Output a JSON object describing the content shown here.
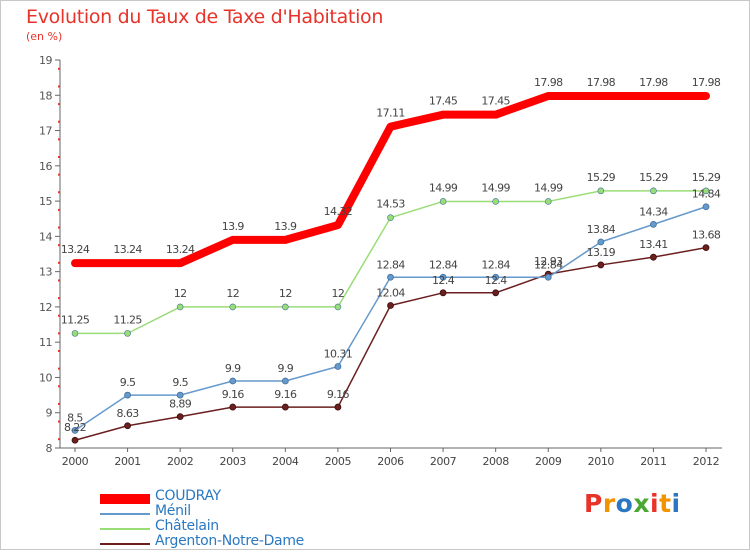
{
  "title": "Evolution du Taux de Taxe d'Habitation",
  "units": "(en %)",
  "logo": {
    "text": "Proxiti",
    "colors": [
      "#e8332a",
      "#f29400",
      "#2a78c2",
      "#4aa832",
      "#e8332a",
      "#f29400",
      "#2a78c2"
    ]
  },
  "chart_data": {
    "type": "line",
    "title": "Evolution du Taux de Taxe d'Habitation",
    "ylabel": "(en %)",
    "xlabel": "",
    "ylim": [
      8,
      19
    ],
    "yticks": [
      8,
      9,
      10,
      11,
      12,
      13,
      14,
      15,
      16,
      17,
      18,
      19
    ],
    "x": [
      "2000",
      "2001",
      "2002",
      "2003",
      "2004",
      "2005",
      "2006",
      "2007",
      "2008",
      "2009",
      "2010",
      "2011",
      "2012"
    ],
    "grid": false,
    "legend": "bottom-left",
    "series": [
      {
        "name": "COUDRAY",
        "color": "#ff0000",
        "values": [
          13.24,
          13.24,
          13.24,
          13.9,
          13.9,
          14.32,
          17.11,
          17.45,
          17.45,
          17.98,
          17.98,
          17.98,
          17.98
        ],
        "labels": [
          "13.24",
          "13.24",
          "13.24",
          "13.9",
          "13.9",
          "14.32",
          "17.11",
          "17.45",
          "17.45",
          "17.98",
          "17.98",
          "17.98",
          "17.98"
        ]
      },
      {
        "name": "Ménil",
        "color": "#6699cc",
        "values": [
          8.5,
          9.5,
          9.5,
          9.9,
          9.9,
          10.31,
          12.84,
          12.84,
          12.84,
          12.84,
          13.84,
          14.34,
          14.84
        ],
        "labels": [
          "8.5",
          "9.5",
          "9.5",
          "9.9",
          "9.9",
          "10.31",
          "12.84",
          "12.84",
          "12.84",
          "12.84",
          "13.84",
          "14.34",
          "14.84"
        ]
      },
      {
        "name": "Châtelain",
        "color": "#99dd77",
        "values": [
          11.25,
          11.25,
          12,
          12,
          12,
          12,
          14.53,
          14.99,
          14.99,
          14.99,
          15.29,
          15.29,
          15.29
        ],
        "labels": [
          "11.25",
          "11.25",
          "12",
          "12",
          "12",
          "12",
          "14.53",
          "14.99",
          "14.99",
          "14.99",
          "15.29",
          "15.29",
          "15.29"
        ]
      },
      {
        "name": "Argenton-Notre-Dame",
        "color": "#6b1f1f",
        "values": [
          8.22,
          8.63,
          8.89,
          9.16,
          9.16,
          9.16,
          12.04,
          12.4,
          12.4,
          12.93,
          13.19,
          13.41,
          13.68
        ],
        "labels": [
          "8.22",
          "8.63",
          "8.89",
          "9.16",
          "9.16",
          "9.16",
          "12.04",
          "12.4",
          "12.4",
          "12.93",
          "13.19",
          "13.41",
          "13.68"
        ]
      }
    ]
  }
}
